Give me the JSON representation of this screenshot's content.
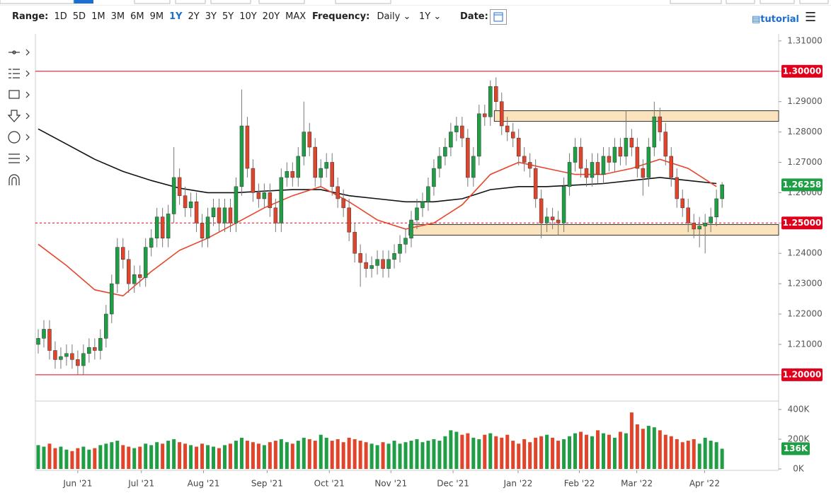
{
  "toolbar": {
    "range_label": "Range:",
    "ranges": [
      "1D",
      "5D",
      "1M",
      "3M",
      "6M",
      "9M",
      "1Y",
      "2Y",
      "3Y",
      "5Y",
      "10Y",
      "20Y",
      "MAX"
    ],
    "active_range": 6,
    "frequency_label": "Frequency:",
    "frequency": "Daily",
    "period": "1Y",
    "date_label": "Date:",
    "tutorial": "tutorial"
  },
  "chart_data": [
    {
      "type": "candlestick",
      "xlim": [
        -0.5,
        131
      ],
      "xticks": [
        {
          "value": 7,
          "label": "Jun '21"
        },
        {
          "value": 18.25,
          "label": "Jul '21"
        },
        {
          "value": 29.25,
          "label": "Aug '21"
        },
        {
          "value": 40.5,
          "label": "Sep '21"
        },
        {
          "value": 51.5,
          "label": "Oct '21"
        },
        {
          "value": 62.4,
          "label": "Nov '21"
        },
        {
          "value": 73.4,
          "label": "Dec '21"
        },
        {
          "value": 84.9,
          "label": "Jan '22"
        },
        {
          "value": 95.75,
          "label": "Feb '22"
        },
        {
          "value": 105.9,
          "label": "Mar '22"
        },
        {
          "value": 117.9,
          "label": "Apr '22"
        }
      ],
      "ylim": [
        1.1918,
        1.3123
      ],
      "yticks": [
        {
          "value": 1.31,
          "label": "1.31000"
        },
        {
          "value": 1.3,
          "label": "1.30000"
        },
        {
          "value": 1.29,
          "label": "1.29000"
        },
        {
          "value": 1.28,
          "label": "1.28000"
        },
        {
          "value": 1.27,
          "label": "1.27000"
        },
        {
          "value": 1.26,
          "label": "1.26000"
        },
        {
          "value": 1.25,
          "label": "1.25000"
        },
        {
          "value": 1.24,
          "label": "1.24000"
        },
        {
          "value": 1.23,
          "label": "1.23000"
        },
        {
          "value": 1.22,
          "label": "1.22000"
        },
        {
          "value": 1.21,
          "label": "1.21000"
        },
        {
          "value": 1.2,
          "label": "1.20000"
        }
      ],
      "up_color": "#1f9e45",
      "down_color": "#e0452b",
      "open": [
        1.21,
        1.212,
        1.215,
        1.208,
        1.205,
        1.206,
        1.207,
        1.205,
        1.203,
        1.207,
        1.209,
        1.208,
        1.212,
        1.22,
        1.23,
        1.242,
        1.238,
        1.23,
        1.233,
        1.232,
        1.242,
        1.245,
        1.252,
        1.245,
        1.253,
        1.265,
        1.259,
        1.255,
        1.257,
        1.25,
        1.245,
        1.252,
        1.255,
        1.25,
        1.255,
        1.25,
        1.262,
        1.282,
        1.268,
        1.26,
        1.258,
        1.26,
        1.255,
        1.25,
        1.265,
        1.267,
        1.265,
        1.272,
        1.28,
        1.275,
        1.265,
        1.268,
        1.27,
        1.262,
        1.258,
        1.255,
        1.247,
        1.24,
        1.237,
        1.235,
        1.236,
        1.238,
        1.235,
        1.238,
        1.24,
        1.243,
        1.245,
        1.251,
        1.255,
        1.257,
        1.262,
        1.268,
        1.272,
        1.275,
        1.28,
        1.282,
        1.278,
        1.265,
        1.272,
        1.286,
        1.285,
        1.295,
        1.29,
        1.282,
        1.28,
        1.278,
        1.272,
        1.27,
        1.268,
        1.258,
        1.25,
        1.252,
        1.251,
        1.25,
        1.262,
        1.27,
        1.275,
        1.268,
        1.265,
        1.27,
        1.266,
        1.272,
        1.27,
        1.275,
        1.272,
        1.278,
        1.275,
        1.268,
        1.265,
        1.275,
        1.285,
        1.28,
        1.272,
        1.265,
        1.258,
        1.255,
        1.25,
        1.248,
        1.249,
        1.25,
        1.252,
        1.258
      ],
      "high": [
        1.215,
        1.218,
        1.218,
        1.211,
        1.209,
        1.21,
        1.21,
        1.208,
        1.21,
        1.212,
        1.212,
        1.215,
        1.223,
        1.233,
        1.245,
        1.245,
        1.241,
        1.236,
        1.236,
        1.245,
        1.248,
        1.255,
        1.255,
        1.256,
        1.275,
        1.268,
        1.262,
        1.26,
        1.26,
        1.253,
        1.255,
        1.258,
        1.258,
        1.258,
        1.258,
        1.265,
        1.294,
        1.285,
        1.271,
        1.263,
        1.263,
        1.263,
        1.258,
        1.268,
        1.27,
        1.27,
        1.275,
        1.29,
        1.283,
        1.278,
        1.271,
        1.273,
        1.273,
        1.265,
        1.261,
        1.258,
        1.25,
        1.243,
        1.24,
        1.239,
        1.241,
        1.241,
        1.241,
        1.243,
        1.246,
        1.248,
        1.254,
        1.258,
        1.26,
        1.265,
        1.271,
        1.275,
        1.278,
        1.283,
        1.285,
        1.285,
        1.281,
        1.275,
        1.289,
        1.289,
        1.297,
        1.298,
        1.293,
        1.285,
        1.283,
        1.281,
        1.275,
        1.273,
        1.271,
        1.261,
        1.255,
        1.255,
        1.254,
        1.265,
        1.273,
        1.278,
        1.278,
        1.271,
        1.273,
        1.273,
        1.275,
        1.275,
        1.278,
        1.278,
        1.287,
        1.281,
        1.278,
        1.271,
        1.278,
        1.29,
        1.288,
        1.283,
        1.275,
        1.268,
        1.261,
        1.258,
        1.253,
        1.252,
        1.253,
        1.255,
        1.261,
        1.2635
      ],
      "low": [
        1.207,
        1.209,
        1.205,
        1.202,
        1.202,
        1.203,
        1.202,
        1.2,
        1.2,
        1.204,
        1.205,
        1.205,
        1.209,
        1.217,
        1.227,
        1.235,
        1.227,
        1.227,
        1.229,
        1.229,
        1.239,
        1.242,
        1.242,
        1.242,
        1.25,
        1.256,
        1.252,
        1.252,
        1.247,
        1.242,
        1.242,
        1.249,
        1.247,
        1.247,
        1.247,
        1.247,
        1.259,
        1.265,
        1.257,
        1.255,
        1.255,
        1.252,
        1.247,
        1.247,
        1.262,
        1.262,
        1.262,
        1.269,
        1.272,
        1.262,
        1.262,
        1.265,
        1.259,
        1.255,
        1.252,
        1.244,
        1.237,
        1.229,
        1.232,
        1.232,
        1.233,
        1.232,
        1.232,
        1.235,
        1.237,
        1.24,
        1.242,
        1.248,
        1.252,
        1.254,
        1.259,
        1.265,
        1.269,
        1.272,
        1.277,
        1.275,
        1.262,
        1.262,
        1.269,
        1.282,
        1.282,
        1.287,
        1.279,
        1.277,
        1.275,
        1.269,
        1.267,
        1.265,
        1.255,
        1.245,
        1.247,
        1.248,
        1.246,
        1.247,
        1.259,
        1.267,
        1.265,
        1.262,
        1.262,
        1.263,
        1.263,
        1.267,
        1.267,
        1.269,
        1.269,
        1.272,
        1.265,
        1.259,
        1.262,
        1.272,
        1.277,
        1.269,
        1.262,
        1.255,
        1.252,
        1.247,
        1.245,
        1.242,
        1.24,
        1.247,
        1.249,
        1.255
      ],
      "close": [
        1.212,
        1.215,
        1.208,
        1.205,
        1.206,
        1.207,
        1.205,
        1.203,
        1.207,
        1.209,
        1.208,
        1.212,
        1.22,
        1.23,
        1.242,
        1.238,
        1.23,
        1.233,
        1.232,
        1.242,
        1.245,
        1.252,
        1.245,
        1.253,
        1.265,
        1.259,
        1.255,
        1.257,
        1.25,
        1.245,
        1.252,
        1.255,
        1.25,
        1.255,
        1.25,
        1.262,
        1.282,
        1.268,
        1.26,
        1.258,
        1.26,
        1.255,
        1.25,
        1.265,
        1.267,
        1.265,
        1.272,
        1.28,
        1.275,
        1.265,
        1.268,
        1.27,
        1.262,
        1.258,
        1.255,
        1.247,
        1.24,
        1.237,
        1.235,
        1.236,
        1.238,
        1.235,
        1.238,
        1.24,
        1.243,
        1.245,
        1.251,
        1.255,
        1.257,
        1.262,
        1.268,
        1.272,
        1.275,
        1.28,
        1.282,
        1.278,
        1.265,
        1.272,
        1.286,
        1.285,
        1.295,
        1.29,
        1.282,
        1.28,
        1.278,
        1.272,
        1.27,
        1.268,
        1.258,
        1.25,
        1.252,
        1.251,
        1.25,
        1.262,
        1.27,
        1.275,
        1.268,
        1.265,
        1.27,
        1.266,
        1.272,
        1.27,
        1.275,
        1.272,
        1.278,
        1.275,
        1.268,
        1.265,
        1.275,
        1.285,
        1.28,
        1.272,
        1.265,
        1.258,
        1.255,
        1.25,
        1.248,
        1.249,
        1.25,
        1.252,
        1.258,
        1.2626
      ],
      "moving_averages": [
        {
          "color": "#111111",
          "x": [
            0,
            5,
            10,
            15,
            20,
            25,
            30,
            35,
            40,
            45,
            50,
            55,
            60,
            65,
            70,
            75,
            80,
            85,
            90,
            95,
            100,
            105,
            110,
            115,
            120
          ],
          "values": [
            1.281,
            1.276,
            1.271,
            1.267,
            1.264,
            1.2615,
            1.26,
            1.26,
            1.2605,
            1.261,
            1.261,
            1.259,
            1.258,
            1.257,
            1.257,
            1.258,
            1.261,
            1.262,
            1.262,
            1.2625,
            1.263,
            1.264,
            1.265,
            1.264,
            1.263
          ]
        },
        {
          "color": "#e8452c",
          "x": [
            0,
            5,
            10,
            15,
            20,
            25,
            30,
            35,
            40,
            45,
            50,
            55,
            60,
            65,
            70,
            75,
            80,
            85,
            90,
            95,
            100,
            105,
            110,
            115,
            120
          ],
          "values": [
            1.243,
            1.236,
            1.228,
            1.226,
            1.234,
            1.241,
            1.245,
            1.25,
            1.255,
            1.259,
            1.262,
            1.257,
            1.251,
            1.248,
            1.25,
            1.256,
            1.266,
            1.27,
            1.268,
            1.266,
            1.266,
            1.268,
            1.271,
            1.268,
            1.262
          ]
        }
      ],
      "zones": [
        {
          "low": 1.2835,
          "high": 1.287,
          "x_start": 80.7
        },
        {
          "low": 1.246,
          "high": 1.2495,
          "x_start": 65.6
        }
      ],
      "zone_color": "#fbe3bd",
      "levels": [
        {
          "value": 1.3,
          "label": "1.30000",
          "style": "solid"
        },
        {
          "value": 1.25,
          "label": "1.25000",
          "style": "dashed"
        },
        {
          "value": 1.2,
          "label": "1.20000",
          "style": "solid"
        }
      ],
      "level_color": "#e0001b",
      "last_price": {
        "value": 1.26258,
        "label": "1.26258"
      },
      "last_color": "#1f9e45"
    },
    {
      "type": "bar",
      "ylim": [
        -9500,
        452000
      ],
      "yticks": [
        {
          "value": 400000,
          "label": "400K"
        },
        {
          "value": 200000,
          "label": "200K"
        },
        {
          "value": 0,
          "label": "0K"
        }
      ],
      "values": [
        160000,
        150000,
        170000,
        140000,
        150000,
        130000,
        120000,
        140000,
        150000,
        130000,
        140000,
        160000,
        170000,
        180000,
        190000,
        160000,
        150000,
        140000,
        150000,
        170000,
        160000,
        180000,
        170000,
        190000,
        200000,
        180000,
        170000,
        160000,
        150000,
        170000,
        160000,
        150000,
        140000,
        160000,
        170000,
        190000,
        210000,
        190000,
        180000,
        170000,
        160000,
        180000,
        190000,
        200000,
        180000,
        170000,
        190000,
        210000,
        200000,
        190000,
        230000,
        210000,
        190000,
        200000,
        180000,
        210000,
        200000,
        190000,
        180000,
        170000,
        160000,
        180000,
        170000,
        190000,
        170000,
        180000,
        190000,
        200000,
        180000,
        190000,
        200000,
        190000,
        220000,
        260000,
        250000,
        230000,
        240000,
        210000,
        200000,
        230000,
        240000,
        220000,
        210000,
        230000,
        190000,
        170000,
        200000,
        180000,
        210000,
        220000,
        230000,
        210000,
        190000,
        200000,
        220000,
        240000,
        250000,
        230000,
        220000,
        260000,
        240000,
        230000,
        210000,
        250000,
        240000,
        380000,
        300000,
        270000,
        290000,
        280000,
        260000,
        230000,
        220000,
        200000,
        180000,
        190000,
        200000,
        170000,
        210000,
        190000,
        180000,
        136000
      ],
      "last_value": {
        "value": 136000,
        "label": "136K"
      }
    }
  ]
}
